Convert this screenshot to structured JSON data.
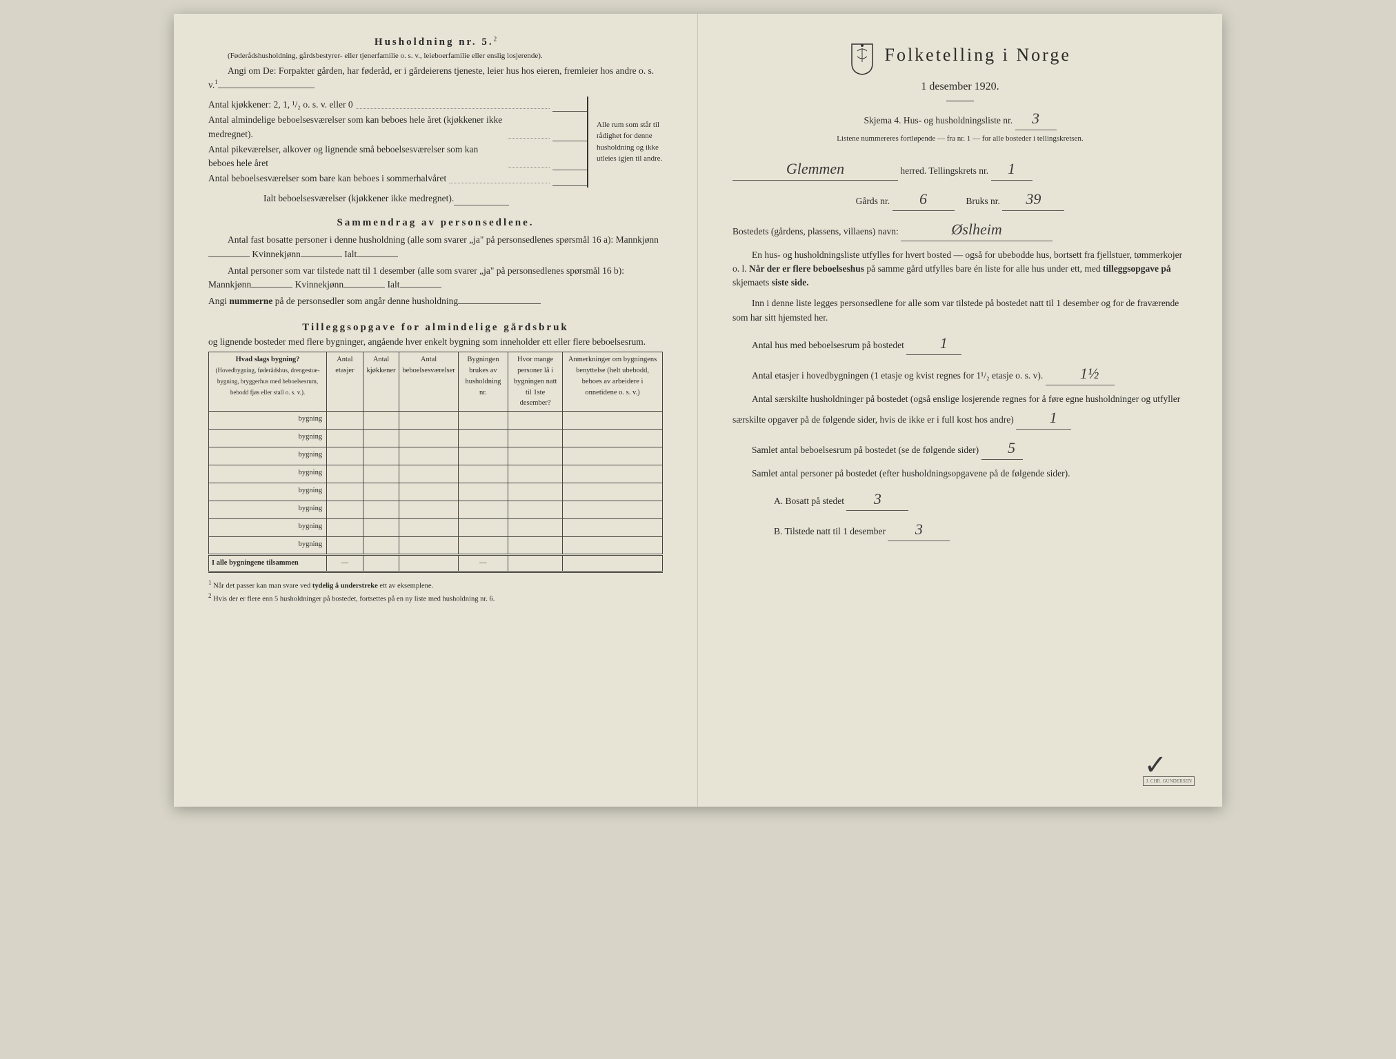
{
  "left": {
    "h5_title": "Husholdning nr. 5.",
    "h5_sup": "2",
    "h5_paren": "(Føderådshusholdning, gårdsbestyrer- eller tjenerfamilie o. s. v., leieboerfamilie eller enslig losjerende).",
    "h5_angi": "Angi om De: Forpakter gården, har føderåd, er i gårdeierens tjeneste, leier hus hos eieren, fremleier hos andre o. s. v.",
    "h5_angi_sup": "1",
    "kitchen_label": "Antal kjøkkener: 2, 1, ¹/₂ o. s. v. eller 0",
    "rooms": [
      "Antal almindelige beboelsesværelser som kan beboes hele året (kjøkkener ikke medregnet).",
      "Antal pikeværelser, alkover og lignende små beboelsesværelser som kan beboes hele året",
      "Antal beboelsesværelser som bare kan beboes i sommerhalvåret"
    ],
    "brace_text": "Alle rum som står til rådighet for denne husholdning og ikke utleies igjen til andre.",
    "ialt_label": "Ialt beboelsesværelser  (kjøkkener ikke medregnet).",
    "sammendrag_title": "Sammendrag av personsedlene.",
    "s_line1": "Antal fast bosatte personer i denne husholdning (alle som svarer „ja\" på personsedlenes spørsmål 16 a): Mannkjønn",
    "s_kvinne": "Kvinnekjønn",
    "s_ialt": "Ialt",
    "s_line2": "Antal personer som var tilstede natt til 1 desember (alle som svarer „ja\" på personsedlenes spørsmål 16 b): Mannkjønn",
    "s_angi": "Angi nummerne på de personsedler som angår denne husholdning",
    "tillegg_title": "Tilleggsopgave for almindelige gårdsbruk",
    "tillegg_sub": "og lignende bosteder med flere bygninger, angående hver enkelt bygning som inneholder ett eller flere beboelsesrum.",
    "table": {
      "headers": [
        "Hvad slags bygning?\n(Hovedbygning, føderådshus, drengestue­bygning, bryggerhus med beboelsesrum, bebodd fjøs eller stall o. s. v.).",
        "Antal etasjer",
        "Antal kjøkkener",
        "Antal beboelsesværelser",
        "Bygningen brukes av husholdning nr.",
        "Hvor mange personer lå i bygningen natt til 1ste desember?",
        "Anmerkninger om bygningens benyttelse (helt ubebodd, beboes av arbeidere i onnetidene o. s. v.)"
      ],
      "row_label": "bygning",
      "row_count": 8,
      "sum_label": "I alle bygningene tilsammen",
      "dash": "—"
    },
    "footnote1": "Når det passer kan man svare ved tydelig å understreke ett av eksemplene.",
    "footnote2": "Hvis der er flere enn 5 husholdninger på bostedet, fortsettes på en ny liste med husholdning nr. 6."
  },
  "right": {
    "title": "Folketelling  i  Norge",
    "subtitle": "1 desember 1920.",
    "skjema": "Skjema 4.   Hus- og husholdningsliste nr.",
    "skjema_nr": "3",
    "listene": "Listene nummereres fortløpende — fra nr. 1 — for alle bosteder i tellingskretsen.",
    "herred_hand": "Glemmen",
    "herred_label": "herred.   Tellingskrets nr.",
    "krets_nr": "1",
    "gards_label": "Gårds nr.",
    "gards_nr": "6",
    "bruks_label": "Bruks nr.",
    "bruks_nr": "39",
    "bosted_label": "Bostedets (gårdens, plassens, villaens) navn:",
    "bosted_hand": "Øslheim",
    "para1": "En hus- og husholdningsliste utfylles for hvert bosted — også for ubebodde hus, bortsett fra fjellstuer, tømmerkojer o. l.  Når der er flere beboelseshus på samme gård utfylles bare én liste for alle hus under ett, med tilleggsopgave på skjemaets siste side.",
    "para2": "Inn i denne liste legges personsedlene for alle som var tilstede på bostedet natt til 1 desember og for de fraværende som har sitt hjemsted her.",
    "q1_label": "Antal hus med beboelsesrum på bostedet",
    "q1_val": "1",
    "q2_label_a": "Antal etasjer i hovedbygningen (1 etasje og kvist regnes for 1¹/₂ etasje o. s. v).",
    "q2_val": "1½",
    "q3_label": "Antal særskilte husholdninger på bostedet (også enslige losjerende regnes for å føre egne husholdninger og utfyller særskilte opgaver på de følgende sider, hvis de ikke er i full kost hos andre)",
    "q3_val": "1",
    "q4_label": "Samlet antal beboelsesrum på bostedet (se de følgende sider)",
    "q4_val": "5",
    "q5_label": "Samlet antal personer på bostedet (efter husholdningsopgavene på de følgende sider).",
    "qA_label": "A.  Bosatt på stedet",
    "qA_val": "3",
    "qB_label": "B.  Tilstede natt til 1 desember",
    "qB_val": "3",
    "printer": "J. CHR. GUNDERSEN"
  },
  "colors": {
    "paper": "#e8e4d5",
    "ink": "#2a2a2a",
    "hand": "#3a3a3a"
  }
}
